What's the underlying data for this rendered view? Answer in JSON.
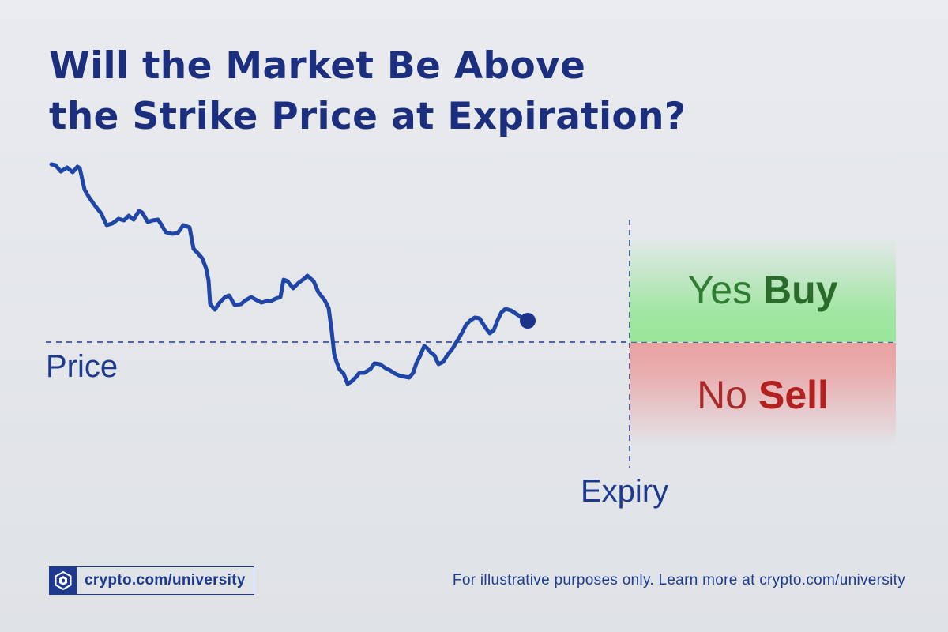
{
  "title": {
    "line1": "Will the Market Be Above",
    "line2": "the Strike Price at Expiration?"
  },
  "diagram": {
    "price_label": "Price",
    "expiry_label": "Expiry",
    "yes": {
      "word": "Yes",
      "action": "Buy"
    },
    "no": {
      "word": "No",
      "action": "Sell"
    }
  },
  "footer": {
    "brand": "crypto.com/university",
    "note": "For illustrative purposes only. Learn more at crypto.com/university"
  },
  "colors": {
    "navy": "#1c2f7e",
    "line": "#1f45a6",
    "yes_zone": "#8ce68c",
    "no_zone": "#eb9696"
  }
}
